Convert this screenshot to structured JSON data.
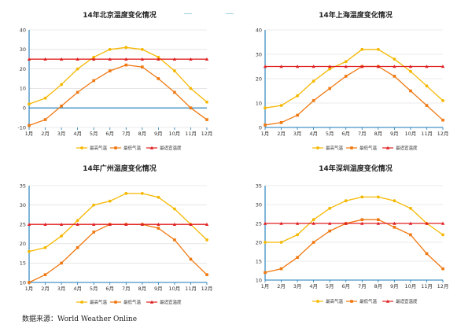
{
  "source_label": "数据来源：World Weather Online",
  "colors": {
    "high": "#F5B800",
    "low": "#F07810",
    "comfort": "#E02020",
    "axis": "#1a7ab8",
    "grid": "#d7d7d7"
  },
  "chart_data": [
    {
      "type": "line",
      "title": "14年北京温度变化情况",
      "categories": [
        "1月",
        "2月",
        "3月",
        "4月",
        "5月",
        "6月",
        "7月",
        "8月",
        "9月",
        "10月",
        "11月",
        "12月"
      ],
      "ylim": [
        -10,
        40
      ],
      "yticks": [
        -10,
        0,
        10,
        20,
        30,
        40
      ],
      "series": [
        {
          "name": "最高气温",
          "key": "high",
          "values": [
            2,
            5,
            12,
            20,
            26,
            30,
            31,
            30,
            26,
            19,
            10,
            3
          ]
        },
        {
          "name": "最低气温",
          "key": "low",
          "values": [
            -9,
            -6,
            1,
            8,
            14,
            19,
            22,
            21,
            15,
            8,
            0,
            -6
          ]
        },
        {
          "name": "最适宜温度",
          "key": "comfort",
          "values": [
            25,
            25,
            25,
            25,
            25,
            25,
            25,
            25,
            25,
            25,
            25,
            25
          ]
        }
      ]
    },
    {
      "type": "line",
      "title": "14年上海温度变化情况",
      "categories": [
        "1月",
        "2月",
        "3月",
        "4月",
        "5月",
        "6月",
        "7月",
        "8月",
        "9月",
        "10月",
        "11月",
        "12月"
      ],
      "ylim": [
        0,
        40
      ],
      "yticks": [
        0,
        10,
        20,
        30,
        40
      ],
      "series": [
        {
          "name": "最高气温",
          "key": "high",
          "values": [
            8,
            9,
            13,
            19,
            24,
            27,
            32,
            32,
            28,
            23,
            17,
            11
          ]
        },
        {
          "name": "最低气温",
          "key": "low",
          "values": [
            1,
            2,
            5,
            11,
            16,
            21,
            25,
            25,
            21,
            15,
            9,
            3
          ]
        },
        {
          "name": "最适宜温度",
          "key": "comfort",
          "values": [
            25,
            25,
            25,
            25,
            25,
            25,
            25,
            25,
            25,
            25,
            25,
            25
          ]
        }
      ]
    },
    {
      "type": "line",
      "title": "14年广州温度变化情况",
      "categories": [
        "1月",
        "2月",
        "3月",
        "4月",
        "5月",
        "6月",
        "7月",
        "8月",
        "9月",
        "10月",
        "11月",
        "12月"
      ],
      "ylim": [
        10,
        35
      ],
      "yticks": [
        10,
        15,
        20,
        25,
        30,
        35
      ],
      "series": [
        {
          "name": "最高气温",
          "key": "high",
          "values": [
            18,
            19,
            22,
            26,
            30,
            31,
            33,
            33,
            32,
            29,
            25,
            21
          ]
        },
        {
          "name": "最低气温",
          "key": "low",
          "values": [
            10,
            12,
            15,
            19,
            23,
            25,
            25,
            25,
            24,
            21,
            16,
            12
          ]
        },
        {
          "name": "最适宜温度",
          "key": "comfort",
          "values": [
            25,
            25,
            25,
            25,
            25,
            25,
            25,
            25,
            25,
            25,
            25,
            25
          ]
        }
      ]
    },
    {
      "type": "line",
      "title": "14年深圳温度变化情况",
      "categories": [
        "1月",
        "2月",
        "3月",
        "4月",
        "5月",
        "6月",
        "7月",
        "8月",
        "9月",
        "10月",
        "11月",
        "12月"
      ],
      "ylim": [
        10,
        35
      ],
      "yticks": [
        10,
        15,
        20,
        25,
        30,
        35
      ],
      "series": [
        {
          "name": "最高气温",
          "key": "high",
          "values": [
            20,
            20,
            22,
            26,
            29,
            31,
            32,
            32,
            31,
            29,
            25,
            22
          ]
        },
        {
          "name": "最低气温",
          "key": "low",
          "values": [
            12,
            13,
            16,
            20,
            23,
            25,
            26,
            26,
            24,
            22,
            17,
            13
          ]
        },
        {
          "name": "最适宜温度",
          "key": "comfort",
          "values": [
            25,
            25,
            25,
            25,
            25,
            25,
            25,
            25,
            25,
            25,
            25,
            25
          ]
        }
      ]
    }
  ]
}
